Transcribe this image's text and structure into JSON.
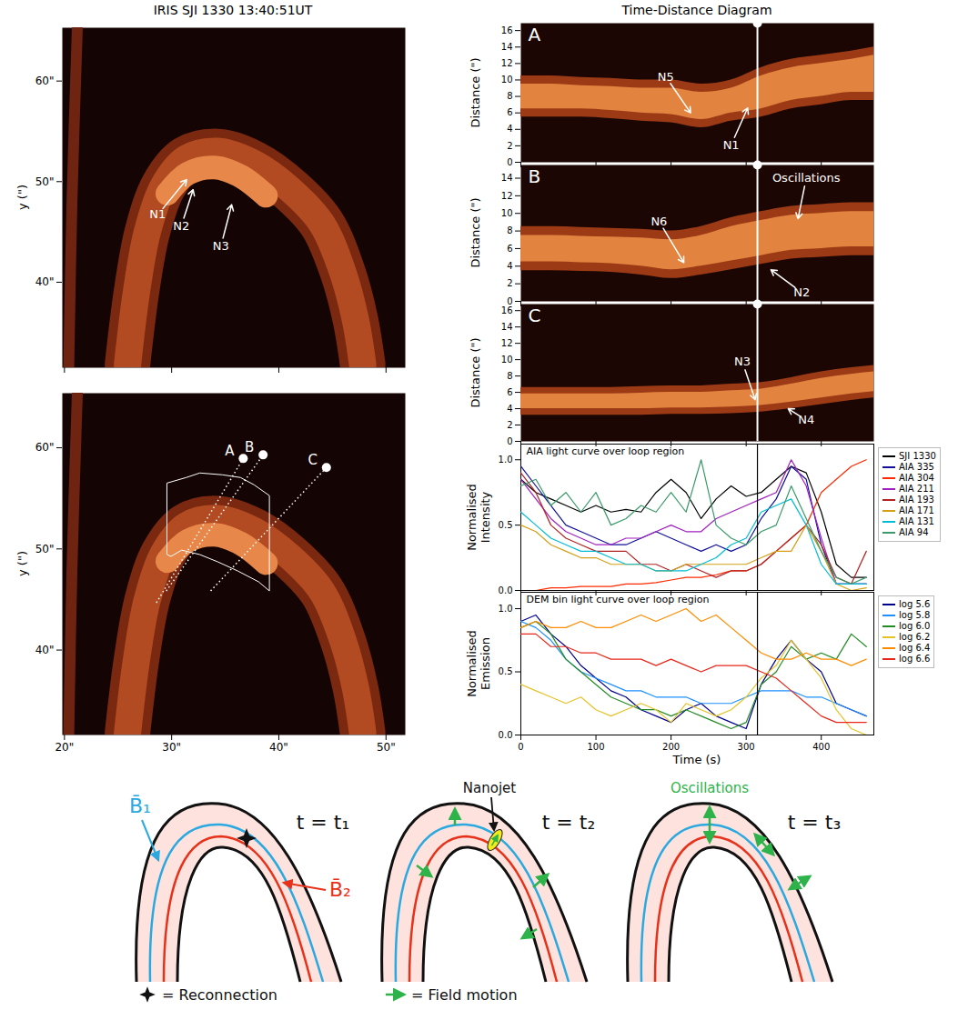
{
  "chart_data": [
    {
      "type": "image",
      "title": "IRIS SJI 1330 13:40:51UT",
      "ylabel": "y (\")",
      "xlim": [
        19.8,
        51.8
      ],
      "ylim": [
        31.5,
        65.3
      ],
      "xticks": [
        {
          "value": 20,
          "label": "20\""
        },
        {
          "value": 30,
          "label": "30\""
        },
        {
          "value": 40,
          "label": "40\""
        },
        {
          "value": 50,
          "label": "50\""
        }
      ],
      "yticks": [
        {
          "value": 40,
          "label": "40\""
        },
        {
          "value": 50,
          "label": "50\""
        },
        {
          "value": 60,
          "label": "60\""
        }
      ],
      "tick_labels": "y",
      "loop": {
        "x": [
          25.88,
          26.72,
          27.73,
          29.25,
          31.36,
          34.31,
          37.69,
          41.07,
          44.02,
          45.96,
          47.14,
          47.82
        ],
        "y": [
          31.8,
          39.06,
          45.0,
          49.6,
          52.3,
          53.0,
          51.8,
          49.2,
          45.8,
          41.0,
          36.3,
          31.82
        ]
      },
      "core": {
        "x": [
          29.6,
          31.5,
          34,
          36.5,
          38.8
        ],
        "y": [
          48.8,
          50.8,
          51.4,
          50.5,
          48.6
        ]
      },
      "strand": {
        "x": [
          20.4,
          20.7,
          21.2
        ],
        "y": [
          31.5,
          48,
          65.3
        ]
      },
      "annotations": [
        {
          "text": "N1",
          "x": 28.7,
          "y": 46.7,
          "arrow_x": 31.4,
          "arrow_y": 50.2
        },
        {
          "text": "N2",
          "x": 30.9,
          "y": 45.6,
          "arrow_x": 32.0,
          "arrow_y": 49.2
        },
        {
          "text": "N3",
          "x": 34.6,
          "y": 43.6,
          "arrow_x": 35.6,
          "arrow_y": 47.7
        }
      ]
    },
    {
      "type": "image",
      "ylabel": "y (\")",
      "xlim": [
        19.8,
        51.8
      ],
      "ylim": [
        31.6,
        65.4
      ],
      "xticks": [
        {
          "value": 20,
          "label": "20\""
        },
        {
          "value": 30,
          "label": "30\""
        },
        {
          "value": 40,
          "label": "40\""
        },
        {
          "value": 50,
          "label": "50\""
        }
      ],
      "yticks": [
        {
          "value": 40,
          "label": "40\""
        },
        {
          "value": 50,
          "label": "50\""
        },
        {
          "value": 60,
          "label": "60\""
        }
      ],
      "loop": {
        "x": [
          25.88,
          26.72,
          27.73,
          29.25,
          31.36,
          34.31,
          37.69,
          41.07,
          44.02,
          45.96,
          47.14,
          47.82
        ],
        "y": [
          31.8,
          39.06,
          45.0,
          49.6,
          52.3,
          53.0,
          51.8,
          49.2,
          45.8,
          41.0,
          36.3,
          31.82
        ]
      },
      "core": {
        "x": [
          29.6,
          31.5,
          34,
          36.5,
          38.8
        ],
        "y": [
          48.8,
          50.8,
          51.4,
          50.5,
          48.6
        ]
      },
      "strand": {
        "x": [
          20.4,
          20.7,
          21.2
        ],
        "y": [
          31.6,
          48,
          65.4
        ]
      },
      "contour": {
        "x": [
          29.59,
          31.36,
          32.63,
          34.74,
          36.42,
          37.69,
          39.12,
          39.12,
          38.11,
          36.17,
          34.31,
          32.63,
          30.94,
          29.93,
          29.59
        ],
        "y": [
          56.52,
          57.06,
          57.51,
          57.33,
          57.06,
          56.34,
          55.27,
          45.85,
          46.75,
          47.82,
          48.72,
          49.44,
          49.88,
          49.26,
          49.44
        ]
      },
      "slits": [
        {
          "name": "A",
          "x1": 28.58,
          "y1": 44.68,
          "x2": 36.68,
          "y2": 58.94
        },
        {
          "name": "B",
          "x1": 29.5,
          "y1": 45.85,
          "x2": 38.53,
          "y2": 59.3
        },
        {
          "name": "C",
          "x1": 33.64,
          "y1": 45.85,
          "x2": 44.44,
          "y2": 58.05
        }
      ]
    },
    {
      "type": "time-distance",
      "title": "Time-Distance Diagram",
      "panel_label": "A",
      "ylabel": "Distance (\")",
      "xlim": [
        0,
        470
      ],
      "ylim": [
        0,
        16.9
      ],
      "xticks": [
        0,
        100,
        200,
        300,
        400
      ],
      "yticks": [
        0,
        2,
        4,
        6,
        8,
        10,
        12,
        14,
        16
      ],
      "tick_labels": "y",
      "marker_time": 315,
      "time": [
        0,
        40,
        80,
        120,
        160,
        200,
        240,
        280,
        320,
        360,
        400,
        440,
        470
      ],
      "band_lower": [
        5.5,
        5.5,
        5.5,
        5.3,
        5,
        4.8,
        4.2,
        5,
        5.5,
        6.5,
        7,
        7.5,
        7.5
      ],
      "band_upper": [
        10.5,
        10.5,
        10.3,
        10.2,
        10,
        10,
        9.5,
        10,
        11.5,
        12.5,
        13,
        13.5,
        14
      ],
      "core_lower": [
        6.5,
        6.5,
        6.5,
        6.3,
        6,
        5.8,
        5.2,
        6,
        6.5,
        7.5,
        8,
        8.5,
        8.5
      ],
      "core_upper": [
        9.5,
        9.5,
        9.3,
        9.2,
        9,
        9,
        8.5,
        9,
        10.5,
        11.5,
        12,
        12.5,
        13
      ],
      "annotations": [
        {
          "text": "N5",
          "x": 193,
          "y": 10.4,
          "arrow_x": 226,
          "arrow_y": 6
        },
        {
          "text": "N1",
          "x": 280,
          "y": 2.1,
          "arrow_x": 302,
          "arrow_y": 6.6
        }
      ]
    },
    {
      "type": "time-distance",
      "panel_label": "B",
      "ylabel": "Distance (\")",
      "xlim": [
        0,
        470
      ],
      "ylim": [
        0,
        15.5
      ],
      "xticks": [
        0,
        100,
        200,
        300,
        400
      ],
      "yticks": [
        0,
        2,
        4,
        6,
        8,
        10,
        12,
        14
      ],
      "tick_labels": "y",
      "marker_time": 315,
      "time": [
        0,
        40,
        80,
        120,
        160,
        200,
        240,
        280,
        320,
        360,
        400,
        440,
        470
      ],
      "band_lower": [
        3.5,
        3.5,
        3.4,
        3.3,
        3.0,
        2.6,
        3.0,
        3.6,
        4.2,
        4.8,
        5.0,
        5.2,
        5.2
      ],
      "band_upper": [
        8.5,
        8.5,
        8.4,
        8.3,
        8.2,
        8.0,
        8.5,
        9.5,
        10.2,
        10.8,
        11.0,
        11.2,
        11.2
      ],
      "core_lower": [
        4.5,
        4.5,
        4.4,
        4.3,
        4.0,
        3.6,
        4.0,
        4.6,
        5.2,
        5.8,
        6.0,
        6.2,
        6.2
      ],
      "core_upper": [
        7.5,
        7.5,
        7.4,
        7.3,
        7.2,
        7.0,
        7.5,
        8.5,
        9.2,
        9.8,
        10.0,
        10.2,
        10.2
      ],
      "annotations": [
        {
          "text": "N6",
          "x": 184,
          "y": 9.1,
          "arrow_x": 217,
          "arrow_y": 4.4
        },
        {
          "text": "N2",
          "x": 374,
          "y": 1.0,
          "arrow_x": 333,
          "arrow_y": 3.6
        },
        {
          "text": "Oscillations",
          "x": 380,
          "y": 14,
          "arrow_x": 369,
          "arrow_y": 9.4
        }
      ]
    },
    {
      "type": "time-distance",
      "panel_label": "C",
      "ylabel": "Distance (\")",
      "xlim": [
        0,
        470
      ],
      "ylim": [
        0,
        16.8
      ],
      "xticks": [
        0,
        100,
        200,
        300,
        400
      ],
      "yticks": [
        0,
        2,
        4,
        6,
        8,
        10,
        12,
        14,
        16
      ],
      "tick_labels": "y",
      "marker_time": 315,
      "time": [
        0,
        40,
        80,
        120,
        160,
        200,
        240,
        280,
        320,
        360,
        400,
        440,
        470
      ],
      "band_lower": [
        3.2,
        3.2,
        3.2,
        3.2,
        3.2,
        3.3,
        3.3,
        3.4,
        3.6,
        4.0,
        4.5,
        5.0,
        5.3
      ],
      "band_upper": [
        6.6,
        6.6,
        6.6,
        6.6,
        6.7,
        6.8,
        6.8,
        7.0,
        7.2,
        7.8,
        8.5,
        9.0,
        9.3
      ],
      "core_lower": [
        4.0,
        4.0,
        4.0,
        4.0,
        4.0,
        4.1,
        4.1,
        4.2,
        4.4,
        4.8,
        5.3,
        5.8,
        6.1
      ],
      "core_upper": [
        5.8,
        5.8,
        5.8,
        5.8,
        5.9,
        6.0,
        6.0,
        6.2,
        6.4,
        7.0,
        7.7,
        8.2,
        8.5
      ],
      "annotations": [
        {
          "text": "N3",
          "x": 295,
          "y": 9.7,
          "arrow_x": 312,
          "arrow_y": 5.1
        },
        {
          "text": "N4",
          "x": 380,
          "y": 2.6,
          "arrow_x": 356,
          "arrow_y": 4.0
        }
      ]
    },
    {
      "type": "line",
      "title": "AIA light curve over loop region",
      "ylabel": "Normalised Intensity",
      "xlim": [
        0,
        470
      ],
      "ylim": [
        0,
        1.12
      ],
      "xticks": [
        0,
        100,
        200,
        300,
        400
      ],
      "yticks": [
        {
          "value": 0,
          "label": "0.0"
        },
        {
          "value": 0.5,
          "label": "0.5"
        },
        {
          "value": 1,
          "label": "1.0"
        }
      ],
      "tick_labels": "y",
      "legend": "right",
      "marker_time": 315,
      "x": [
        0,
        20,
        40,
        60,
        80,
        100,
        120,
        140,
        160,
        180,
        200,
        220,
        240,
        260,
        280,
        300,
        320,
        340,
        360,
        380,
        400,
        420,
        440,
        460
      ],
      "series": [
        {
          "name": "SJI 1330",
          "color": "#000000",
          "values": [
            0.85,
            0.75,
            0.7,
            0.65,
            0.6,
            0.65,
            0.6,
            0.62,
            0.6,
            0.75,
            0.85,
            0.75,
            0.55,
            0.7,
            0.8,
            0.72,
            0.75,
            0.85,
            0.95,
            0.9,
            0.6,
            0.2,
            0.1,
            0.1
          ]
        },
        {
          "name": "AIA 335",
          "color": "#10109a",
          "values": [
            0.95,
            0.8,
            0.65,
            0.5,
            0.45,
            0.4,
            0.35,
            0.35,
            0.4,
            0.45,
            0.4,
            0.35,
            0.3,
            0.35,
            0.3,
            0.35,
            0.55,
            0.7,
            0.95,
            0.85,
            0.35,
            0.05,
            0.05,
            0.05
          ]
        },
        {
          "name": "AIA 304",
          "color": "#ff2a00",
          "values": [
            0,
            0,
            0.02,
            0.02,
            0.03,
            0.03,
            0.03,
            0.05,
            0.05,
            0.06,
            0.08,
            0.1,
            0.1,
            0.12,
            0.15,
            0.15,
            0.2,
            0.3,
            0.4,
            0.5,
            0.75,
            0.85,
            0.95,
            1.0
          ]
        },
        {
          "name": "AIA 211",
          "color": "#a020c0",
          "values": [
            0.85,
            0.7,
            0.55,
            0.45,
            0.4,
            0.35,
            0.35,
            0.4,
            0.4,
            0.45,
            0.5,
            0.45,
            0.45,
            0.55,
            0.6,
            0.65,
            0.7,
            0.75,
            1.0,
            0.8,
            0.4,
            0.05,
            0.05,
            0.05
          ]
        },
        {
          "name": "AIA 193",
          "color": "#b22222",
          "values": [
            0.9,
            0.75,
            0.5,
            0.4,
            0.35,
            0.3,
            0.3,
            0.3,
            0.2,
            0.2,
            0.15,
            0.2,
            0.15,
            0.1,
            0.15,
            0.15,
            0.2,
            0.3,
            0.4,
            0.5,
            0.35,
            0.1,
            0.05,
            0.3
          ]
        },
        {
          "name": "AIA 171",
          "color": "#d4a017",
          "values": [
            0.5,
            0.45,
            0.35,
            0.3,
            0.25,
            0.25,
            0.2,
            0.2,
            0.2,
            0.15,
            0.15,
            0.2,
            0.2,
            0.2,
            0.2,
            0.2,
            0.25,
            0.3,
            0.3,
            0.5,
            0.3,
            0.05,
            0,
            0.02
          ]
        },
        {
          "name": "AIA 131",
          "color": "#00bcd4",
          "values": [
            0.6,
            0.5,
            0.4,
            0.35,
            0.3,
            0.3,
            0.25,
            0.2,
            0.2,
            0.15,
            0.15,
            0.15,
            0.2,
            0.25,
            0.35,
            0.4,
            0.6,
            0.65,
            0.7,
            0.5,
            0.2,
            0.05,
            0.05,
            0.05
          ]
        },
        {
          "name": "AIA 94",
          "color": "#3a9a6a",
          "values": [
            0.8,
            0.85,
            0.65,
            0.75,
            0.6,
            0.75,
            0.5,
            0.55,
            0.65,
            0.6,
            0.75,
            0.6,
            1.0,
            0.5,
            0.4,
            0.35,
            0.45,
            0.5,
            0.8,
            0.55,
            0.3,
            0.1,
            0.05,
            0.1
          ]
        }
      ]
    },
    {
      "type": "line",
      "title": "DEM bin light curve over loop region",
      "ylabel": "Normalised Emission",
      "xlabel": "Time (s)",
      "xlim": [
        0,
        470
      ],
      "ylim": [
        0,
        1.13
      ],
      "xticks": [
        0,
        100,
        200,
        300,
        400
      ],
      "yticks": [
        {
          "value": 0,
          "label": "0.0"
        },
        {
          "value": 0.5,
          "label": "0.5"
        },
        {
          "value": 1,
          "label": "1.0"
        }
      ],
      "legend": "right",
      "marker_time": 315,
      "x": [
        0,
        20,
        40,
        60,
        80,
        100,
        120,
        140,
        160,
        180,
        200,
        220,
        240,
        260,
        280,
        300,
        320,
        340,
        360,
        380,
        400,
        420,
        440,
        460
      ],
      "series": [
        {
          "name": "log 5.6",
          "color": "#00008b",
          "values": [
            0.9,
            0.95,
            0.8,
            0.7,
            0.55,
            0.45,
            0.35,
            0.3,
            0.2,
            0.15,
            0.1,
            0.2,
            0.25,
            0.15,
            0.1,
            0.05,
            0.4,
            0.6,
            0.75,
            0.6,
            0.5,
            0.25,
            0.2,
            0.15
          ]
        },
        {
          "name": "log 5.8",
          "color": "#1e90ff",
          "values": [
            0.9,
            0.85,
            0.75,
            0.6,
            0.5,
            0.45,
            0.4,
            0.35,
            0.35,
            0.3,
            0.3,
            0.3,
            0.25,
            0.25,
            0.25,
            0.3,
            0.35,
            0.35,
            0.35,
            0.3,
            0.3,
            0.25,
            0.2,
            0.15
          ]
        },
        {
          "name": "log 6.0",
          "color": "#228b22",
          "values": [
            0.85,
            0.9,
            0.8,
            0.6,
            0.5,
            0.4,
            0.3,
            0.25,
            0.2,
            0.2,
            0.15,
            0.2,
            0.15,
            0.1,
            0.05,
            0.1,
            0.4,
            0.5,
            0.7,
            0.6,
            0.65,
            0.6,
            0.8,
            0.7
          ]
        },
        {
          "name": "log 6.2",
          "color": "#e6c229",
          "values": [
            0.4,
            0.35,
            0.3,
            0.25,
            0.3,
            0.2,
            0.15,
            0.2,
            0.25,
            0.2,
            0.1,
            0.25,
            0.2,
            0.15,
            0.2,
            0.3,
            0.45,
            0.55,
            0.75,
            0.6,
            0.45,
            0.2,
            0.05,
            0
          ]
        },
        {
          "name": "log 6.4",
          "color": "#ff8c00",
          "values": [
            0.85,
            0.9,
            0.85,
            0.85,
            0.9,
            0.85,
            0.85,
            0.9,
            0.95,
            0.9,
            0.95,
            1.0,
            0.9,
            0.95,
            0.85,
            0.75,
            0.65,
            0.6,
            0.6,
            0.65,
            0.6,
            0.6,
            0.55,
            0.6
          ]
        },
        {
          "name": "log 6.6",
          "color": "#e8261a",
          "values": [
            0.8,
            0.8,
            0.7,
            0.7,
            0.65,
            0.65,
            0.6,
            0.6,
            0.6,
            0.55,
            0.6,
            0.55,
            0.5,
            0.55,
            0.55,
            0.55,
            0.5,
            0.45,
            0.35,
            0.25,
            0.15,
            0.1,
            0.1,
            0.1
          ]
        }
      ]
    }
  ],
  "schematic": {
    "panels": [
      {
        "time_label": "t = t₁",
        "field_labels": [
          "B̄₁",
          "B̄₂"
        ],
        "key": "= Reconnection"
      },
      {
        "time_label": "t = t₂",
        "annotation": "Nanojet",
        "key": "= Field motion"
      },
      {
        "time_label": "t = t₃",
        "annotation": "Oscillations"
      }
    ]
  }
}
